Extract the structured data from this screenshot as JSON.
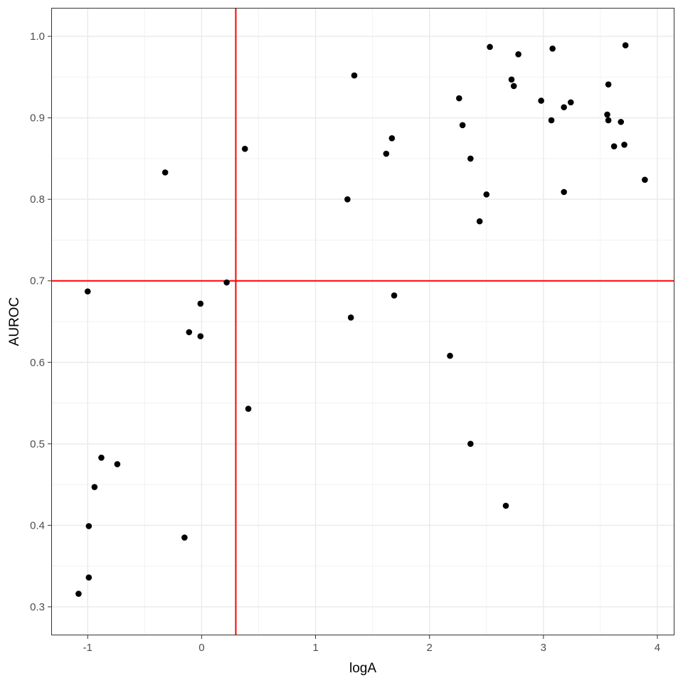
{
  "chart_data": {
    "type": "scatter",
    "xlabel": "logA",
    "ylabel": "AUROC",
    "xlim": [
      -1.32,
      4.15
    ],
    "ylim": [
      0.265,
      1.035
    ],
    "x_ticks": [
      -1,
      0,
      1,
      2,
      3,
      4
    ],
    "x_tick_labels": [
      "-1",
      "0",
      "1",
      "2",
      "3",
      "4"
    ],
    "x_minor_ticks": [
      -0.5,
      0.5,
      1.5,
      2.5,
      3.5
    ],
    "y_ticks": [
      0.3,
      0.4,
      0.5,
      0.6,
      0.7,
      0.8,
      0.9,
      1.0
    ],
    "y_tick_labels": [
      "0.3",
      "0.4",
      "0.5",
      "0.6",
      "0.7",
      "0.8",
      "0.9",
      "1.0"
    ],
    "y_minor_ticks": [
      0.35,
      0.45,
      0.55,
      0.65,
      0.75,
      0.85,
      0.95
    ],
    "grid": true,
    "reference_lines": [
      {
        "orientation": "vertical",
        "value": 0.3,
        "color": "#ff0000"
      },
      {
        "orientation": "horizontal",
        "value": 0.7,
        "color": "#ff0000"
      }
    ],
    "point_color": "#000000",
    "points": [
      {
        "x": -1.08,
        "y": 0.316
      },
      {
        "x": -0.99,
        "y": 0.336
      },
      {
        "x": -0.99,
        "y": 0.399
      },
      {
        "x": -0.94,
        "y": 0.447
      },
      {
        "x": -0.88,
        "y": 0.483
      },
      {
        "x": -0.74,
        "y": 0.475
      },
      {
        "x": -1.0,
        "y": 0.687
      },
      {
        "x": -0.32,
        "y": 0.833
      },
      {
        "x": -0.15,
        "y": 0.385
      },
      {
        "x": -0.11,
        "y": 0.637
      },
      {
        "x": -0.01,
        "y": 0.672
      },
      {
        "x": -0.01,
        "y": 0.632
      },
      {
        "x": 0.22,
        "y": 0.698
      },
      {
        "x": 0.38,
        "y": 0.862
      },
      {
        "x": 0.41,
        "y": 0.543
      },
      {
        "x": 1.28,
        "y": 0.8
      },
      {
        "x": 1.31,
        "y": 0.655
      },
      {
        "x": 1.34,
        "y": 0.952
      },
      {
        "x": 1.62,
        "y": 0.856
      },
      {
        "x": 1.67,
        "y": 0.875
      },
      {
        "x": 1.69,
        "y": 0.682
      },
      {
        "x": 2.18,
        "y": 0.608
      },
      {
        "x": 2.26,
        "y": 0.924
      },
      {
        "x": 2.29,
        "y": 0.891
      },
      {
        "x": 2.36,
        "y": 0.85
      },
      {
        "x": 2.36,
        "y": 0.5
      },
      {
        "x": 2.44,
        "y": 0.773
      },
      {
        "x": 2.5,
        "y": 0.806
      },
      {
        "x": 2.53,
        "y": 0.987
      },
      {
        "x": 2.67,
        "y": 0.424
      },
      {
        "x": 2.72,
        "y": 0.947
      },
      {
        "x": 2.74,
        "y": 0.939
      },
      {
        "x": 2.78,
        "y": 0.978
      },
      {
        "x": 2.98,
        "y": 0.921
      },
      {
        "x": 3.07,
        "y": 0.897
      },
      {
        "x": 3.08,
        "y": 0.985
      },
      {
        "x": 3.18,
        "y": 0.913
      },
      {
        "x": 3.18,
        "y": 0.809
      },
      {
        "x": 3.24,
        "y": 0.919
      },
      {
        "x": 3.56,
        "y": 0.904
      },
      {
        "x": 3.57,
        "y": 0.941
      },
      {
        "x": 3.57,
        "y": 0.897
      },
      {
        "x": 3.62,
        "y": 0.865
      },
      {
        "x": 3.68,
        "y": 0.895
      },
      {
        "x": 3.71,
        "y": 0.867
      },
      {
        "x": 3.72,
        "y": 0.989
      },
      {
        "x": 3.89,
        "y": 0.824
      }
    ]
  }
}
